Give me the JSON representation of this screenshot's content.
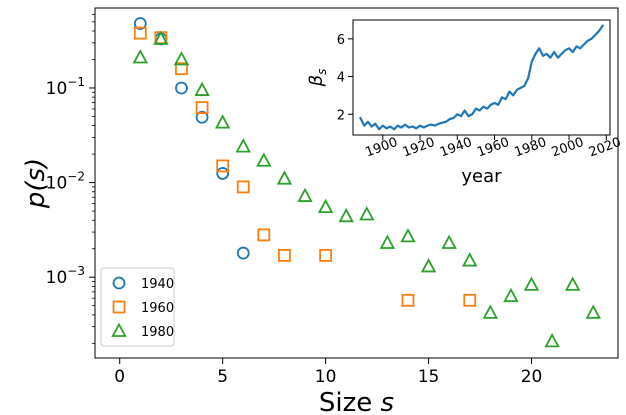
{
  "chart_data": [
    {
      "type": "scatter",
      "xlabel": "Size s",
      "ylabel": "p(s)",
      "yscale": "log",
      "xlim": [
        -1.2,
        24.2
      ],
      "ylim": [
        0.00014,
        0.7
      ],
      "xticks": [
        0,
        5,
        10,
        15,
        20
      ],
      "yticks": [
        {
          "value": 0.1,
          "label": "10^-1",
          "base": "10",
          "exp": "−1"
        },
        {
          "value": 0.01,
          "label": "10^-2",
          "base": "10",
          "exp": "−2"
        },
        {
          "value": 0.001,
          "label": "10^-3",
          "base": "10",
          "exp": "−3"
        }
      ],
      "legend_position": "lower-left",
      "series": [
        {
          "name": "1940",
          "color": "#1f77b4",
          "marker": "circle",
          "x": [
            1,
            2,
            3,
            4,
            5,
            6
          ],
          "y": [
            0.48,
            0.33,
            0.1,
            0.049,
            0.0125,
            0.0018
          ]
        },
        {
          "name": "1960",
          "color": "#ff7f0e",
          "marker": "square",
          "x": [
            1,
            2,
            3,
            4,
            5,
            6,
            7,
            8,
            10,
            14,
            17
          ],
          "y": [
            0.38,
            0.34,
            0.16,
            0.062,
            0.015,
            0.009,
            0.0028,
            0.0017,
            0.0017,
            0.00057,
            0.00057
          ]
        },
        {
          "name": "1980",
          "color": "#2ca02c",
          "marker": "triangle",
          "x": [
            1,
            2,
            3,
            4,
            5,
            6,
            7,
            8,
            9,
            10,
            11,
            12,
            13,
            14,
            15,
            16,
            17,
            18,
            19,
            20,
            21,
            22,
            23
          ],
          "y": [
            0.21,
            0.33,
            0.2,
            0.095,
            0.043,
            0.024,
            0.017,
            0.011,
            0.0072,
            0.0055,
            0.0044,
            0.0046,
            0.0023,
            0.0027,
            0.0013,
            0.0023,
            0.0015,
            0.00042,
            0.00063,
            0.00083,
            0.00021,
            0.00083,
            0.00042
          ]
        }
      ]
    },
    {
      "type": "line",
      "xlabel": "year",
      "ylabel": "β_s",
      "ylabel_base": "β",
      "ylabel_sub": "s",
      "xlim": [
        1884,
        2022
      ],
      "ylim": [
        0.9,
        7.0
      ],
      "xticks": [
        1900,
        1920,
        1940,
        1960,
        1980,
        2000,
        2020
      ],
      "yticks": [
        2,
        4,
        6
      ],
      "series": [
        {
          "color": "#1f77b4",
          "x": [
            1888,
            1890,
            1892,
            1894,
            1896,
            1898,
            1900,
            1902,
            1904,
            1906,
            1908,
            1910,
            1912,
            1914,
            1916,
            1918,
            1920,
            1922,
            1924,
            1926,
            1928,
            1930,
            1932,
            1934,
            1936,
            1938,
            1940,
            1942,
            1944,
            1946,
            1948,
            1950,
            1952,
            1954,
            1956,
            1958,
            1960,
            1962,
            1964,
            1966,
            1968,
            1970,
            1972,
            1974,
            1976,
            1978,
            1980,
            1982,
            1984,
            1986,
            1988,
            1990,
            1992,
            1994,
            1996,
            1998,
            2000,
            2002,
            2004,
            2006,
            2008,
            2010,
            2012,
            2014,
            2016,
            2018
          ],
          "y": [
            1.8,
            1.4,
            1.6,
            1.35,
            1.5,
            1.2,
            1.4,
            1.25,
            1.35,
            1.2,
            1.4,
            1.3,
            1.45,
            1.3,
            1.35,
            1.25,
            1.4,
            1.3,
            1.4,
            1.45,
            1.4,
            1.5,
            1.55,
            1.6,
            1.75,
            1.8,
            2.0,
            1.9,
            2.2,
            1.9,
            2.0,
            2.3,
            2.2,
            2.4,
            2.3,
            2.5,
            2.6,
            2.5,
            2.9,
            2.8,
            3.2,
            3.0,
            3.3,
            3.4,
            3.5,
            3.9,
            4.8,
            5.2,
            5.5,
            5.1,
            5.2,
            5.0,
            5.3,
            5.0,
            5.2,
            5.4,
            5.5,
            5.3,
            5.6,
            5.5,
            5.7,
            5.9,
            6.0,
            6.2,
            6.4,
            6.7
          ]
        }
      ]
    }
  ]
}
